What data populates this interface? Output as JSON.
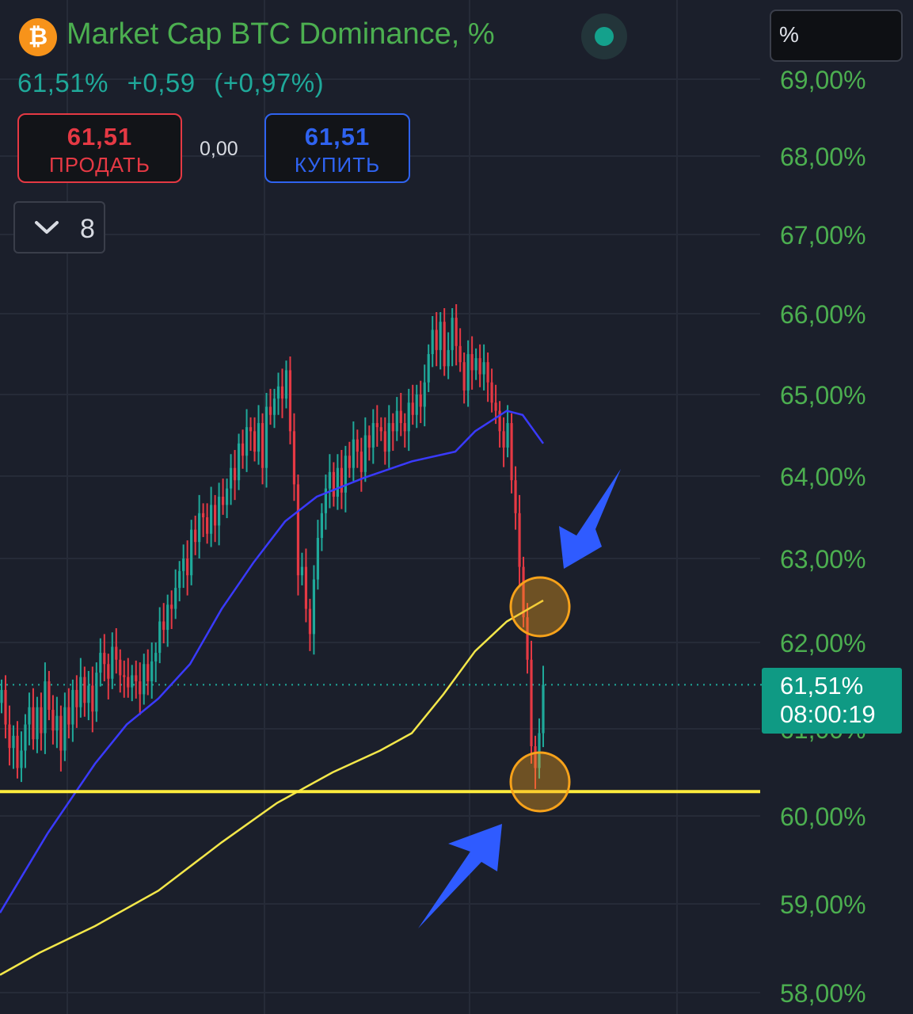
{
  "header": {
    "symbol_icon": "bitcoin-icon",
    "title": "Market Cap BTC Dominance, %",
    "status_icon": "status-dot-icon"
  },
  "change": {
    "value": "61,51%",
    "abs": "+0,59",
    "pct": "(+0,97%)"
  },
  "trade": {
    "sell_price": "61,51",
    "sell_label": "ПРОДАТЬ",
    "spread": "0,00",
    "buy_price": "61,51",
    "buy_label": "КУПИТЬ"
  },
  "indicators": {
    "icon": "chevron-down-icon",
    "count": "8"
  },
  "unit": "%",
  "price_tag": {
    "value": "61,51%",
    "countdown": "08:00:19"
  },
  "colors": {
    "background": "#1b1f2b",
    "up": "#1fa99a",
    "down": "#e53944",
    "axis_text": "#4caf50",
    "ma_fast": "#3a3aff",
    "ma_slow": "#f3e74a",
    "support": "#ffec3d",
    "highlight": "#f7a21a",
    "annotation_arrow": "#2f5bff"
  },
  "chart_data": {
    "type": "candlestick",
    "y_axis": {
      "ticks": [
        "69,00%",
        "68,00%",
        "67,00%",
        "66,00%",
        "65,00%",
        "64,00%",
        "63,00%",
        "62,00%",
        "61,00%",
        "60,00%",
        "59,00%",
        "58,00%"
      ],
      "range": [
        57.8,
        69.0
      ]
    },
    "last_price": 61.51,
    "support_level": 60.28,
    "candles_close": [
      61.45,
      61.05,
      60.78,
      60.92,
      60.55,
      60.75,
      61.05,
      61.25,
      60.88,
      61.25,
      60.95,
      61.55,
      61.22,
      60.98,
      61.15,
      60.75,
      61.25,
      61.05,
      61.45,
      61.25,
      61.6,
      61.3,
      61.5,
      61.2,
      61.65,
      61.88,
      61.75,
      61.58,
      61.95,
      61.8,
      61.62,
      61.6,
      61.48,
      61.62,
      61.55,
      61.4,
      61.75,
      61.55,
      61.78,
      61.88,
      62.25,
      62.15,
      62.45,
      62.4,
      62.65,
      62.85,
      63.0,
      62.8,
      63.35,
      63.2,
      63.55,
      63.5,
      63.3,
      63.65,
      63.4,
      63.75,
      63.65,
      63.85,
      64.1,
      63.95,
      64.4,
      64.25,
      64.6,
      64.55,
      64.3,
      64.65,
      64.1,
      64.85,
      64.75,
      64.95,
      65.1,
      64.95,
      65.3,
      64.55,
      63.9,
      62.8,
      62.9,
      62.4,
      62.1,
      62.75,
      63.25,
      63.55,
      63.85,
      64.05,
      63.75,
      64.1,
      63.8,
      64.25,
      64.1,
      64.45,
      64.3,
      64.05,
      64.5,
      64.35,
      64.65,
      64.6,
      64.55,
      64.3,
      64.65,
      64.55,
      64.8,
      64.65,
      64.55,
      64.9,
      64.75,
      65.0,
      64.85,
      65.15,
      65.5,
      65.8,
      65.55,
      65.9,
      65.35,
      65.55,
      65.95,
      65.6,
      65.4,
      65.05,
      65.5,
      65.3,
      65.45,
      65.25,
      65.4,
      65.15,
      64.9,
      64.8,
      64.55,
      64.35,
      64.65,
      63.95,
      63.55,
      62.9,
      62.3,
      61.8,
      60.8,
      60.55,
      60.95,
      61.51
    ],
    "ma_fast": [
      [
        0,
        58.9
      ],
      [
        20,
        59.2
      ],
      [
        60,
        59.8
      ],
      [
        120,
        60.6
      ],
      [
        160,
        61.05
      ],
      [
        200,
        61.35
      ],
      [
        240,
        61.75
      ],
      [
        280,
        62.4
      ],
      [
        320,
        62.95
      ],
      [
        360,
        63.45
      ],
      [
        400,
        63.75
      ],
      [
        460,
        63.98
      ],
      [
        520,
        64.18
      ],
      [
        575,
        64.3
      ],
      [
        600,
        64.55
      ],
      [
        640,
        64.8
      ],
      [
        660,
        64.75
      ],
      [
        686,
        64.4
      ]
    ],
    "ma_slow": [
      [
        0,
        58.2
      ],
      [
        50,
        58.45
      ],
      [
        120,
        58.75
      ],
      [
        200,
        59.15
      ],
      [
        280,
        59.7
      ],
      [
        350,
        60.15
      ],
      [
        420,
        60.5
      ],
      [
        480,
        60.75
      ],
      [
        520,
        60.95
      ],
      [
        560,
        61.4
      ],
      [
        600,
        61.9
      ],
      [
        640,
        62.25
      ],
      [
        686,
        62.5
      ]
    ],
    "annotations": [
      "circle-near-ma",
      "circle-at-low",
      "arrow-down",
      "arrow-up"
    ]
  }
}
